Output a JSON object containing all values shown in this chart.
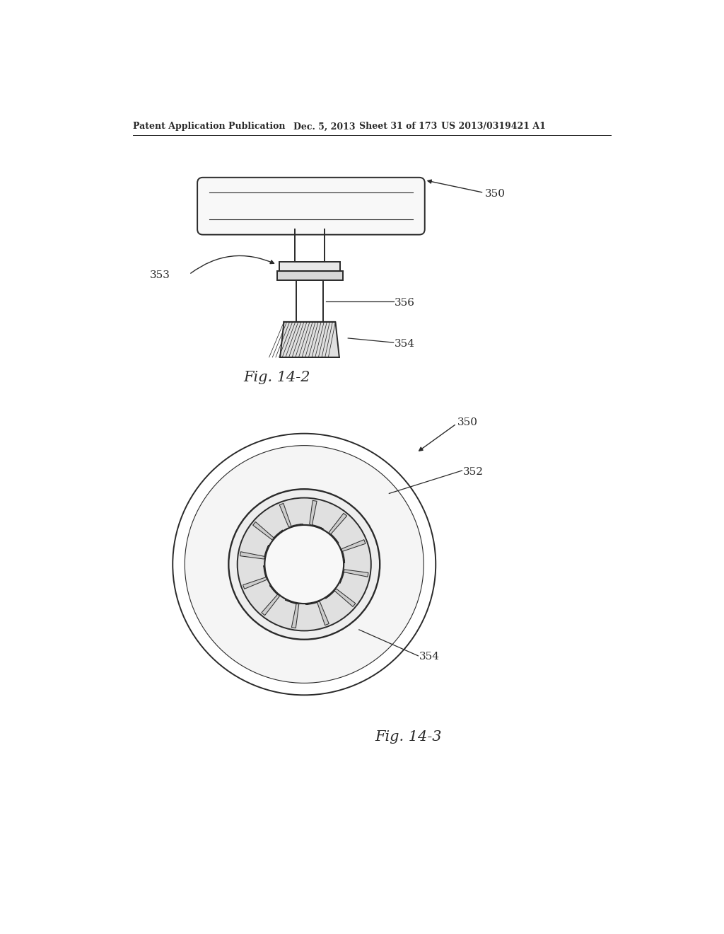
{
  "bg_color": "#ffffff",
  "line_color": "#2a2a2a",
  "header_left": "Patent Application Publication",
  "header_mid": "Dec. 5, 2013   Sheet 31 of 173",
  "header_right": "US 2013/0319421 A1",
  "fig1_label": "Fig. 14-2",
  "fig2_label": "Fig. 14-3"
}
